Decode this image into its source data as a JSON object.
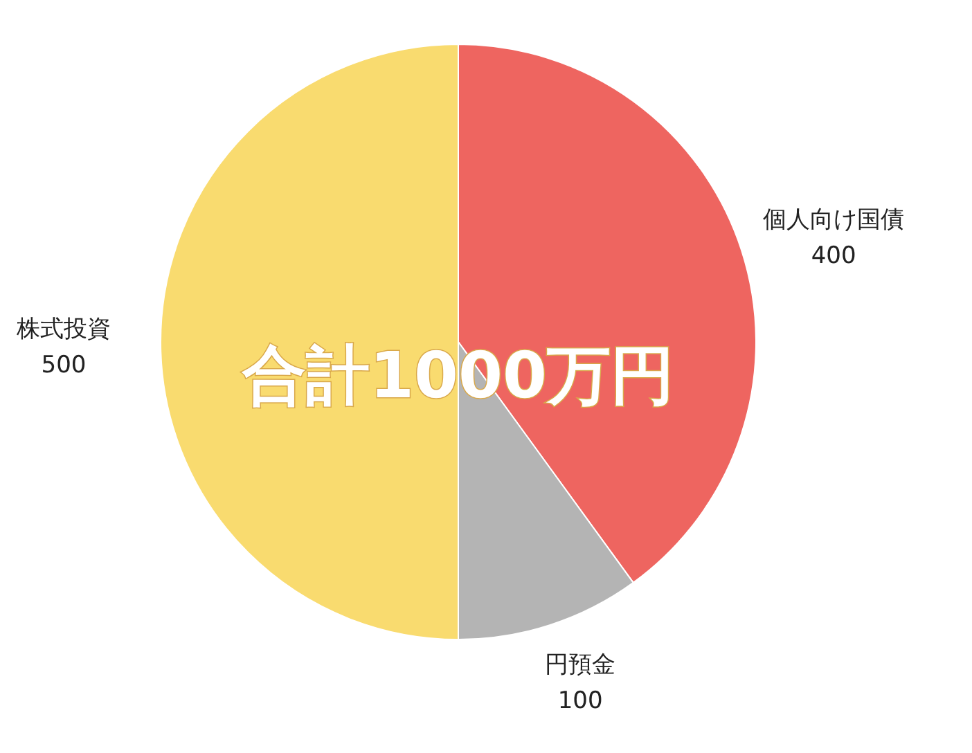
{
  "chart_data": {
    "type": "pie",
    "categories": [
      "個人向け国債",
      "円預金",
      "株式投資"
    ],
    "values": [
      400,
      100,
      500
    ],
    "colors": [
      "#ee6560",
      "#b4b4b4",
      "#f9db6f"
    ],
    "data_labels": true,
    "annotations": [
      "合計1000万円"
    ]
  }
}
